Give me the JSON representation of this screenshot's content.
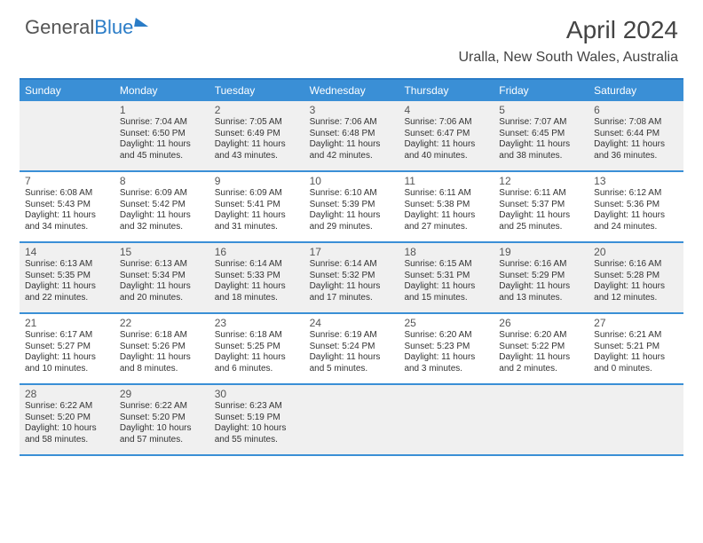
{
  "brand": {
    "part1": "General",
    "part2": "Blue"
  },
  "title": "April 2024",
  "location": "Uralla, New South Wales, Australia",
  "colors": {
    "header_bg": "#3a8fd6",
    "header_text": "#ffffff",
    "rule": "#3a8fd6",
    "shade_bg": "#f0f0f0",
    "body_text": "#333333",
    "title_text": "#444444"
  },
  "day_headers": [
    "Sunday",
    "Monday",
    "Tuesday",
    "Wednesday",
    "Thursday",
    "Friday",
    "Saturday"
  ],
  "weeks": [
    {
      "shaded": true,
      "cells": [
        {
          "num": "",
          "lines": []
        },
        {
          "num": "1",
          "lines": [
            "Sunrise: 7:04 AM",
            "Sunset: 6:50 PM",
            "Daylight: 11 hours",
            "and 45 minutes."
          ]
        },
        {
          "num": "2",
          "lines": [
            "Sunrise: 7:05 AM",
            "Sunset: 6:49 PM",
            "Daylight: 11 hours",
            "and 43 minutes."
          ]
        },
        {
          "num": "3",
          "lines": [
            "Sunrise: 7:06 AM",
            "Sunset: 6:48 PM",
            "Daylight: 11 hours",
            "and 42 minutes."
          ]
        },
        {
          "num": "4",
          "lines": [
            "Sunrise: 7:06 AM",
            "Sunset: 6:47 PM",
            "Daylight: 11 hours",
            "and 40 minutes."
          ]
        },
        {
          "num": "5",
          "lines": [
            "Sunrise: 7:07 AM",
            "Sunset: 6:45 PM",
            "Daylight: 11 hours",
            "and 38 minutes."
          ]
        },
        {
          "num": "6",
          "lines": [
            "Sunrise: 7:08 AM",
            "Sunset: 6:44 PM",
            "Daylight: 11 hours",
            "and 36 minutes."
          ]
        }
      ]
    },
    {
      "shaded": false,
      "cells": [
        {
          "num": "7",
          "lines": [
            "Sunrise: 6:08 AM",
            "Sunset: 5:43 PM",
            "Daylight: 11 hours",
            "and 34 minutes."
          ]
        },
        {
          "num": "8",
          "lines": [
            "Sunrise: 6:09 AM",
            "Sunset: 5:42 PM",
            "Daylight: 11 hours",
            "and 32 minutes."
          ]
        },
        {
          "num": "9",
          "lines": [
            "Sunrise: 6:09 AM",
            "Sunset: 5:41 PM",
            "Daylight: 11 hours",
            "and 31 minutes."
          ]
        },
        {
          "num": "10",
          "lines": [
            "Sunrise: 6:10 AM",
            "Sunset: 5:39 PM",
            "Daylight: 11 hours",
            "and 29 minutes."
          ]
        },
        {
          "num": "11",
          "lines": [
            "Sunrise: 6:11 AM",
            "Sunset: 5:38 PM",
            "Daylight: 11 hours",
            "and 27 minutes."
          ]
        },
        {
          "num": "12",
          "lines": [
            "Sunrise: 6:11 AM",
            "Sunset: 5:37 PM",
            "Daylight: 11 hours",
            "and 25 minutes."
          ]
        },
        {
          "num": "13",
          "lines": [
            "Sunrise: 6:12 AM",
            "Sunset: 5:36 PM",
            "Daylight: 11 hours",
            "and 24 minutes."
          ]
        }
      ]
    },
    {
      "shaded": true,
      "cells": [
        {
          "num": "14",
          "lines": [
            "Sunrise: 6:13 AM",
            "Sunset: 5:35 PM",
            "Daylight: 11 hours",
            "and 22 minutes."
          ]
        },
        {
          "num": "15",
          "lines": [
            "Sunrise: 6:13 AM",
            "Sunset: 5:34 PM",
            "Daylight: 11 hours",
            "and 20 minutes."
          ]
        },
        {
          "num": "16",
          "lines": [
            "Sunrise: 6:14 AM",
            "Sunset: 5:33 PM",
            "Daylight: 11 hours",
            "and 18 minutes."
          ]
        },
        {
          "num": "17",
          "lines": [
            "Sunrise: 6:14 AM",
            "Sunset: 5:32 PM",
            "Daylight: 11 hours",
            "and 17 minutes."
          ]
        },
        {
          "num": "18",
          "lines": [
            "Sunrise: 6:15 AM",
            "Sunset: 5:31 PM",
            "Daylight: 11 hours",
            "and 15 minutes."
          ]
        },
        {
          "num": "19",
          "lines": [
            "Sunrise: 6:16 AM",
            "Sunset: 5:29 PM",
            "Daylight: 11 hours",
            "and 13 minutes."
          ]
        },
        {
          "num": "20",
          "lines": [
            "Sunrise: 6:16 AM",
            "Sunset: 5:28 PM",
            "Daylight: 11 hours",
            "and 12 minutes."
          ]
        }
      ]
    },
    {
      "shaded": false,
      "cells": [
        {
          "num": "21",
          "lines": [
            "Sunrise: 6:17 AM",
            "Sunset: 5:27 PM",
            "Daylight: 11 hours",
            "and 10 minutes."
          ]
        },
        {
          "num": "22",
          "lines": [
            "Sunrise: 6:18 AM",
            "Sunset: 5:26 PM",
            "Daylight: 11 hours",
            "and 8 minutes."
          ]
        },
        {
          "num": "23",
          "lines": [
            "Sunrise: 6:18 AM",
            "Sunset: 5:25 PM",
            "Daylight: 11 hours",
            "and 6 minutes."
          ]
        },
        {
          "num": "24",
          "lines": [
            "Sunrise: 6:19 AM",
            "Sunset: 5:24 PM",
            "Daylight: 11 hours",
            "and 5 minutes."
          ]
        },
        {
          "num": "25",
          "lines": [
            "Sunrise: 6:20 AM",
            "Sunset: 5:23 PM",
            "Daylight: 11 hours",
            "and 3 minutes."
          ]
        },
        {
          "num": "26",
          "lines": [
            "Sunrise: 6:20 AM",
            "Sunset: 5:22 PM",
            "Daylight: 11 hours",
            "and 2 minutes."
          ]
        },
        {
          "num": "27",
          "lines": [
            "Sunrise: 6:21 AM",
            "Sunset: 5:21 PM",
            "Daylight: 11 hours",
            "and 0 minutes."
          ]
        }
      ]
    },
    {
      "shaded": true,
      "cells": [
        {
          "num": "28",
          "lines": [
            "Sunrise: 6:22 AM",
            "Sunset: 5:20 PM",
            "Daylight: 10 hours",
            "and 58 minutes."
          ]
        },
        {
          "num": "29",
          "lines": [
            "Sunrise: 6:22 AM",
            "Sunset: 5:20 PM",
            "Daylight: 10 hours",
            "and 57 minutes."
          ]
        },
        {
          "num": "30",
          "lines": [
            "Sunrise: 6:23 AM",
            "Sunset: 5:19 PM",
            "Daylight: 10 hours",
            "and 55 minutes."
          ]
        },
        {
          "num": "",
          "lines": []
        },
        {
          "num": "",
          "lines": []
        },
        {
          "num": "",
          "lines": []
        },
        {
          "num": "",
          "lines": []
        }
      ]
    }
  ]
}
